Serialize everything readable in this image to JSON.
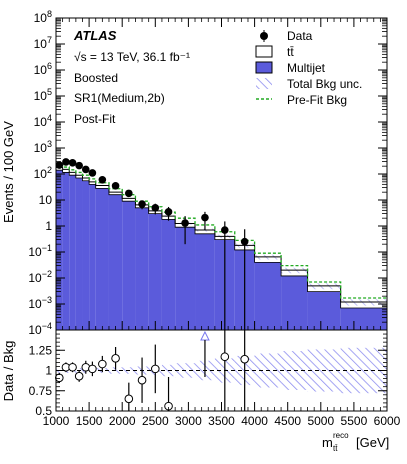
{
  "chart_data": {
    "type": "bar",
    "experiment": "ATLAS",
    "info_lines": [
      "√s = 13 TeV, 36.1 fb⁻¹",
      "Boosted",
      "SR1(Medium,2b)",
      "Post-Fit"
    ],
    "xlabel": "m_tt^reco [GeV]",
    "xlabel_main": "m",
    "xlabel_sup": "reco",
    "xlabel_sub": "tt̄",
    "xlabel_unit": "[GeV]",
    "ylabel": "Events / 100 GeV",
    "ratio_ylabel": "Data / Bkg",
    "xlim": [
      1000,
      6000
    ],
    "ylim": [
      0.0001,
      100000000
    ],
    "yscale": "log",
    "ratio_ylim": [
      0.5,
      1.5
    ],
    "x_ticks": [
      "1000",
      "1500",
      "2000",
      "2500",
      "3000",
      "3500",
      "4000",
      "4500",
      "5000",
      "5500",
      "6000"
    ],
    "y_ticks": [
      {
        "v": 100000000,
        "m": "10",
        "e": "8"
      },
      {
        "v": 10000000,
        "m": "10",
        "e": "7"
      },
      {
        "v": 1000000,
        "m": "10",
        "e": "6"
      },
      {
        "v": 100000,
        "m": "10",
        "e": "5"
      },
      {
        "v": 10000,
        "m": "10",
        "e": "4"
      },
      {
        "v": 1000,
        "m": "10",
        "e": "3"
      },
      {
        "v": 100,
        "m": "10",
        "e": "2"
      },
      {
        "v": 10,
        "m": "10",
        "e": ""
      },
      {
        "v": 1,
        "m": "1",
        "e": ""
      },
      {
        "v": 0.1,
        "m": "10",
        "e": "−1"
      },
      {
        "v": 0.01,
        "m": "10",
        "e": "−2"
      },
      {
        "v": 0.001,
        "m": "10",
        "e": "−3"
      },
      {
        "v": 0.0001,
        "m": "10",
        "e": "−4"
      }
    ],
    "ratio_ticks": [
      "0.5",
      "0.75",
      "1",
      "1.25"
    ],
    "bin_edges": [
      1000,
      1100,
      1200,
      1300,
      1400,
      1500,
      1600,
      1800,
      2000,
      2200,
      2400,
      2600,
      2800,
      3100,
      3400,
      3700,
      4000,
      4400,
      4800,
      5300,
      6000
    ],
    "series": [
      {
        "name": "Multijet",
        "values": [
          140,
          115,
          90,
          70,
          55,
          40,
          28,
          16,
          9,
          5,
          3,
          1.8,
          0.9,
          0.5,
          0.3,
          0.12,
          0.04,
          0.012,
          0.003,
          0.0007
        ],
        "color": "#5b5bdb"
      },
      {
        "name": "tt̄",
        "values": [
          40,
          35,
          25,
          20,
          15,
          10,
          8,
          4,
          2.5,
          1.5,
          0.8,
          0.6,
          0.35,
          0.2,
          0.1,
          0.06,
          0.025,
          0.008,
          0.002,
          0.0005
        ],
        "color": "#ffffff"
      },
      {
        "name": "Pre-Fit Bkg",
        "values": [
          220,
          185,
          145,
          115,
          90,
          65,
          46,
          27,
          16,
          9,
          5.5,
          3.4,
          2.0,
          1.1,
          0.6,
          0.28,
          0.09,
          0.03,
          0.007,
          0.0017
        ],
        "color": "#22aa22"
      }
    ],
    "data_points": [
      {
        "x": 1050,
        "y": 220,
        "err": 15
      },
      {
        "x": 1150,
        "y": 290,
        "err": 17
      },
      {
        "x": 1250,
        "y": 270,
        "err": 16
      },
      {
        "x": 1350,
        "y": 210,
        "err": 14
      },
      {
        "x": 1450,
        "y": 150,
        "err": 12
      },
      {
        "x": 1550,
        "y": 110,
        "err": 10
      },
      {
        "x": 1700,
        "y": 60,
        "err": 8
      },
      {
        "x": 1900,
        "y": 35,
        "err": 6
      },
      {
        "x": 2100,
        "y": 18,
        "err": 4
      },
      {
        "x": 2300,
        "y": 7,
        "err": 2.6
      },
      {
        "x": 2500,
        "y": 5,
        "err": 2.2
      },
      {
        "x": 2700,
        "y": 3.5,
        "err": 1.9
      },
      {
        "x": 2950,
        "y": 1.3,
        "err": 1.1
      },
      {
        "x": 3250,
        "y": 2.1,
        "err": 1.4
      },
      {
        "x": 3550,
        "y": 0.7,
        "err": 0.8
      },
      {
        "x": 3850,
        "y": 0.25,
        "err": 0.5
      }
    ],
    "ratio_points": [
      {
        "x": 1050,
        "y": 0.91,
        "err": 0.06
      },
      {
        "x": 1150,
        "y": 1.04,
        "err": 0.06
      },
      {
        "x": 1250,
        "y": 1.04,
        "err": 0.06
      },
      {
        "x": 1350,
        "y": 0.93,
        "err": 0.07
      },
      {
        "x": 1450,
        "y": 1.04,
        "err": 0.08
      },
      {
        "x": 1550,
        "y": 1.02,
        "err": 0.09
      },
      {
        "x": 1700,
        "y": 1.08,
        "err": 0.1
      },
      {
        "x": 1900,
        "y": 1.15,
        "err": 0.14
      },
      {
        "x": 2100,
        "y": 0.65,
        "err": 0.2
      },
      {
        "x": 2300,
        "y": 0.88,
        "err": 0.28
      },
      {
        "x": 2500,
        "y": 1.02,
        "err": 0.3
      },
      {
        "x": 2700,
        "y": 0.56,
        "err": 0.36
      },
      {
        "x": 3550,
        "y": 1.17,
        "err": 1.0
      },
      {
        "x": 3850,
        "y": 1.14,
        "err": 2.0
      }
    ],
    "ratio_offscale": [
      {
        "x": 3250,
        "y_label": "above range"
      }
    ],
    "uncertainty_band": {
      "name": "Total Bkg unc.",
      "ratio_halfwidth": [
        0.03,
        0.03,
        0.03,
        0.03,
        0.03,
        0.03,
        0.03,
        0.04,
        0.04,
        0.05,
        0.06,
        0.07,
        0.09,
        0.12,
        0.15,
        0.18,
        0.21,
        0.24,
        0.26,
        0.28
      ]
    },
    "legend": [
      {
        "name": "Data",
        "symbol": "data"
      },
      {
        "name": "tt̄",
        "symbol": "box-white"
      },
      {
        "name": "Multijet",
        "symbol": "box-blue"
      },
      {
        "name": "Total Bkg unc.",
        "symbol": "hatch"
      },
      {
        "name": "Pre-Fit Bkg",
        "symbol": "dashed-green"
      }
    ],
    "legend_position": "top-right",
    "grid": false
  }
}
